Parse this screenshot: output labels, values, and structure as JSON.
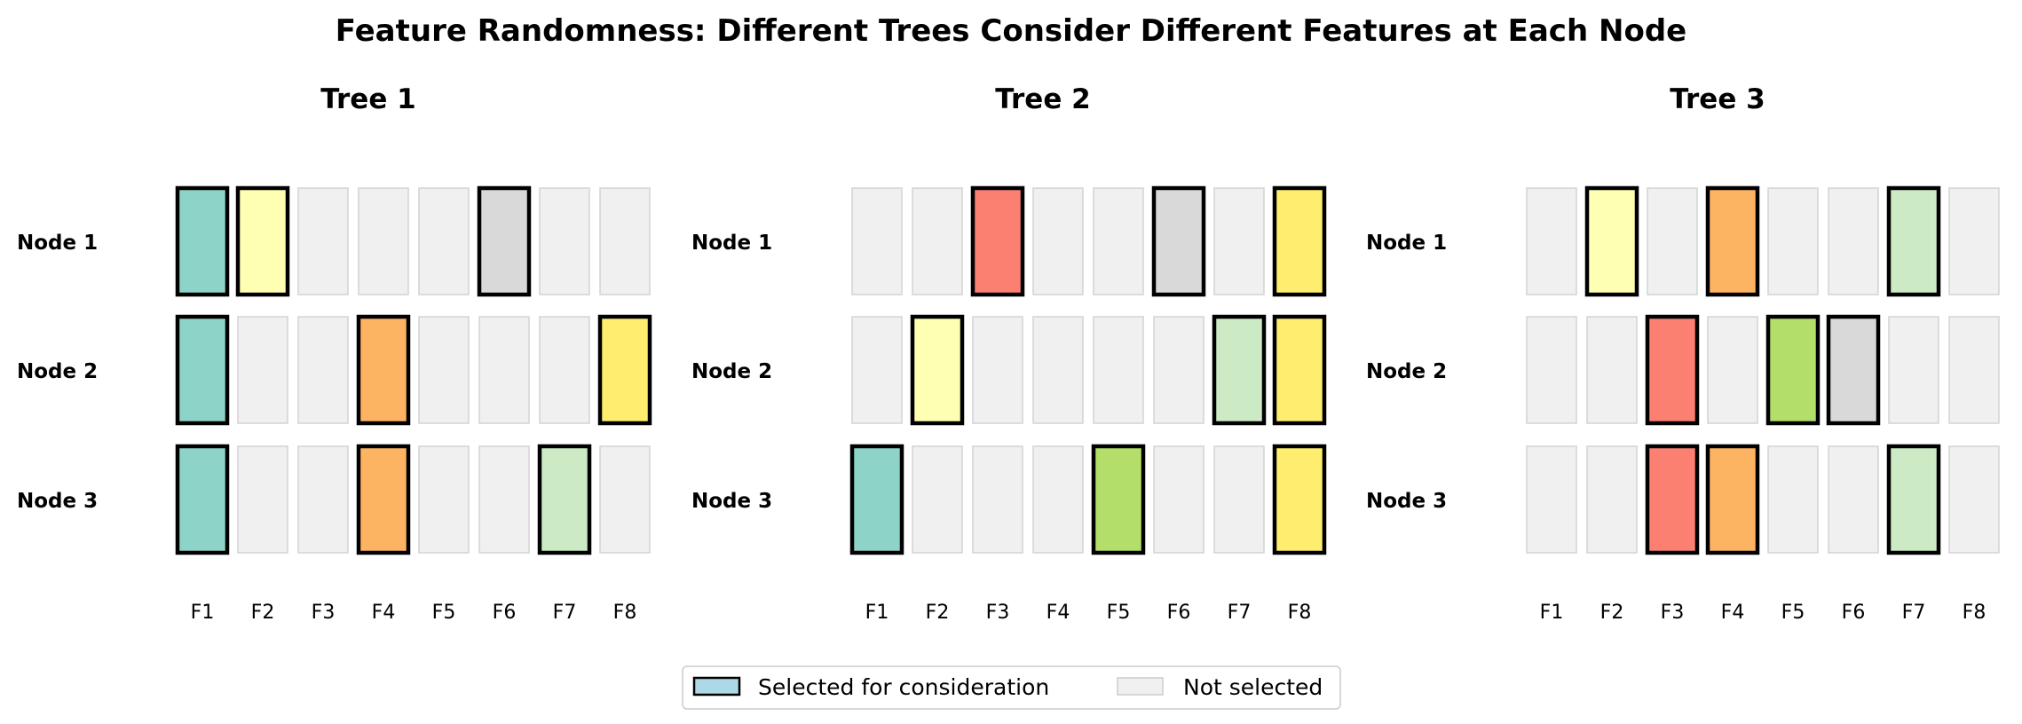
{
  "chart_data": {
    "type": "heatmap",
    "title": "Feature Randomness: Different Trees Consider Different Features at Each Node",
    "features": [
      "F1",
      "F2",
      "F3",
      "F4",
      "F5",
      "F6",
      "F7",
      "F8"
    ],
    "feature_colors": [
      "#8dd3c7",
      "#ffffb3",
      "#fb8072",
      "#fdb462",
      "#b3de69",
      "#d9d9d9",
      "#ccebc5",
      "#ffed6f"
    ],
    "unselected_color": "#f0f0f0",
    "nodes": [
      "Node 1",
      "Node 2",
      "Node 3"
    ],
    "trees": [
      {
        "title": "Tree 1",
        "selected": [
          [
            1,
            1,
            0,
            0,
            0,
            1,
            0,
            0
          ],
          [
            1,
            0,
            0,
            1,
            0,
            0,
            0,
            1
          ],
          [
            1,
            0,
            0,
            1,
            0,
            0,
            1,
            0
          ]
        ]
      },
      {
        "title": "Tree 2",
        "selected": [
          [
            0,
            0,
            1,
            0,
            0,
            1,
            0,
            1
          ],
          [
            0,
            1,
            0,
            0,
            0,
            0,
            1,
            1
          ],
          [
            1,
            0,
            0,
            0,
            1,
            0,
            0,
            1
          ]
        ]
      },
      {
        "title": "Tree 3",
        "selected": [
          [
            0,
            1,
            0,
            1,
            0,
            0,
            1,
            0
          ],
          [
            0,
            0,
            1,
            0,
            1,
            1,
            0,
            0
          ],
          [
            0,
            0,
            1,
            1,
            0,
            0,
            1,
            0
          ]
        ]
      }
    ],
    "legend": {
      "position": "bottom-center",
      "items": [
        {
          "label": "Selected for consideration",
          "color": "#add8e6"
        },
        {
          "label": "Not selected",
          "color": "#f0f0f0"
        }
      ]
    },
    "grid": false
  }
}
